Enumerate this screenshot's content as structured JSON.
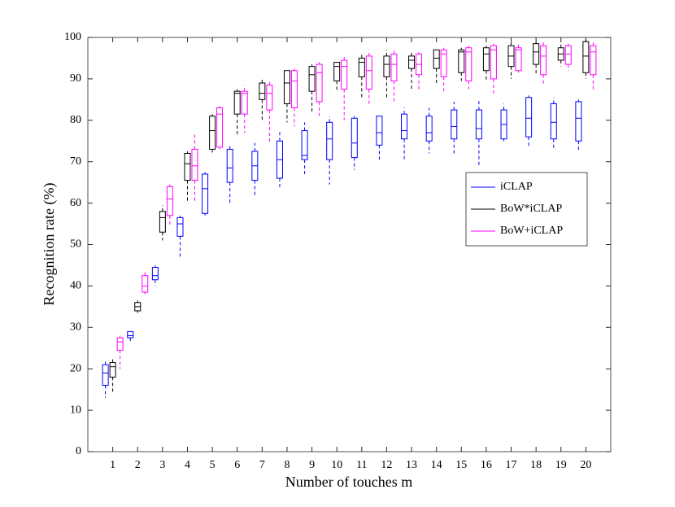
{
  "chart_data": {
    "type": "box",
    "xlabel": "Number of touches m",
    "ylabel": "Recognition rate (%)",
    "x": [
      1,
      2,
      3,
      4,
      5,
      6,
      7,
      8,
      9,
      10,
      11,
      12,
      13,
      14,
      15,
      16,
      17,
      18,
      19,
      20
    ],
    "xlim": [
      0,
      21
    ],
    "xticks": [
      1,
      2,
      3,
      4,
      5,
      6,
      7,
      8,
      9,
      10,
      11,
      12,
      13,
      14,
      15,
      16,
      17,
      18,
      19,
      20
    ],
    "ylim": [
      0,
      100
    ],
    "yticks": [
      0,
      10,
      20,
      30,
      40,
      50,
      60,
      70,
      80,
      90,
      100
    ],
    "legend_position": "east",
    "series": [
      {
        "name": "iCLAP",
        "color": "#0000ff",
        "whisker_low": [
          13,
          26.5,
          40,
          46.5,
          57,
          60,
          61.5,
          63.5,
          67,
          64.5,
          68,
          70.5,
          70,
          72,
          72,
          69,
          75,
          73.5,
          73,
          72.5
        ],
        "q1": [
          16,
          27.5,
          41.5,
          52,
          57.5,
          65,
          65.5,
          66,
          70.5,
          70.5,
          71,
          74,
          75.5,
          75,
          75.5,
          75.5,
          75.5,
          76,
          75.5,
          75
        ],
        "median": [
          19,
          28,
          42.5,
          55,
          63.5,
          68.5,
          69,
          70.5,
          71.5,
          75.5,
          74.5,
          77,
          77.5,
          77,
          78.5,
          78,
          79,
          80.5,
          79.5,
          80.5
        ],
        "q3": [
          21,
          29,
          44.5,
          56.5,
          67,
          73,
          72.5,
          75,
          77.5,
          79.5,
          80.5,
          81,
          81.5,
          81,
          82.5,
          82.5,
          82.5,
          85.5,
          84,
          84.5
        ],
        "whisker_high": [
          22,
          29,
          45,
          57,
          67.5,
          74,
          74.5,
          77.5,
          79.5,
          81,
          81,
          81,
          83,
          83,
          84.5,
          85,
          84,
          86,
          85.5,
          85
        ]
      },
      {
        "name": "BoW*iCLAP",
        "color": "#000000",
        "whisker_low": [
          14,
          33.5,
          51,
          60,
          72,
          76,
          80,
          79.5,
          82,
          87,
          85,
          85.5,
          87,
          89,
          89.5,
          89.5,
          90,
          91,
          93,
          90
        ],
        "q1": [
          18,
          34,
          53,
          65.5,
          73,
          81.5,
          85,
          84,
          87,
          89.5,
          90.5,
          90.5,
          92.5,
          92.5,
          91.5,
          92,
          93,
          93.5,
          94.5,
          91.5
        ],
        "median": [
          20.5,
          35,
          56.5,
          69.5,
          77.5,
          86.5,
          86.5,
          89,
          91,
          93,
          94,
          93.5,
          94.5,
          95,
          96.5,
          96,
          95.5,
          96.5,
          96,
          95.5
        ],
        "q3": [
          21.5,
          36,
          58,
          72,
          81,
          87,
          89,
          92,
          93,
          94,
          95,
          95.5,
          95.5,
          97,
          97,
          97.5,
          98,
          98.5,
          97.5,
          99
        ],
        "whisker_high": [
          22.5,
          36.5,
          59.5,
          72.5,
          81.5,
          87.5,
          90,
          92,
          93.5,
          94,
          96,
          97,
          96.5,
          97,
          97.5,
          98,
          99,
          99,
          98.5,
          99.5
        ]
      },
      {
        "name": "BoW+iCLAP",
        "color": "#ff00ff",
        "whisker_low": [
          20,
          38,
          54.5,
          60,
          73,
          77,
          74.5,
          78.5,
          81,
          80,
          83.5,
          84,
          87,
          87,
          87.5,
          86.5,
          91.5,
          88.5,
          92,
          87
        ],
        "q1": [
          24.5,
          38.5,
          57,
          65.5,
          73.5,
          81.5,
          82.5,
          83,
          84.5,
          87.5,
          87.5,
          89.5,
          91,
          90.5,
          89.5,
          90,
          92,
          91,
          93.5,
          91
        ],
        "median": [
          26.5,
          40,
          61,
          69,
          81.5,
          86.5,
          86.5,
          89.5,
          91.5,
          93,
          92,
          93.5,
          93.5,
          96,
          96.5,
          97,
          97,
          95.5,
          96,
          96.5
        ],
        "q3": [
          27.5,
          42.5,
          64,
          73,
          83,
          87,
          88.5,
          92,
          93.5,
          94.5,
          95.5,
          96,
          96,
          97,
          97.5,
          98,
          97.5,
          98,
          98,
          98
        ],
        "whisker_high": [
          28,
          43.5,
          64.5,
          76.5,
          83.5,
          88.5,
          89.5,
          92.5,
          94,
          95.5,
          97,
          97,
          96.5,
          97.5,
          98,
          98.5,
          98.5,
          99,
          98.5,
          99
        ]
      }
    ]
  }
}
